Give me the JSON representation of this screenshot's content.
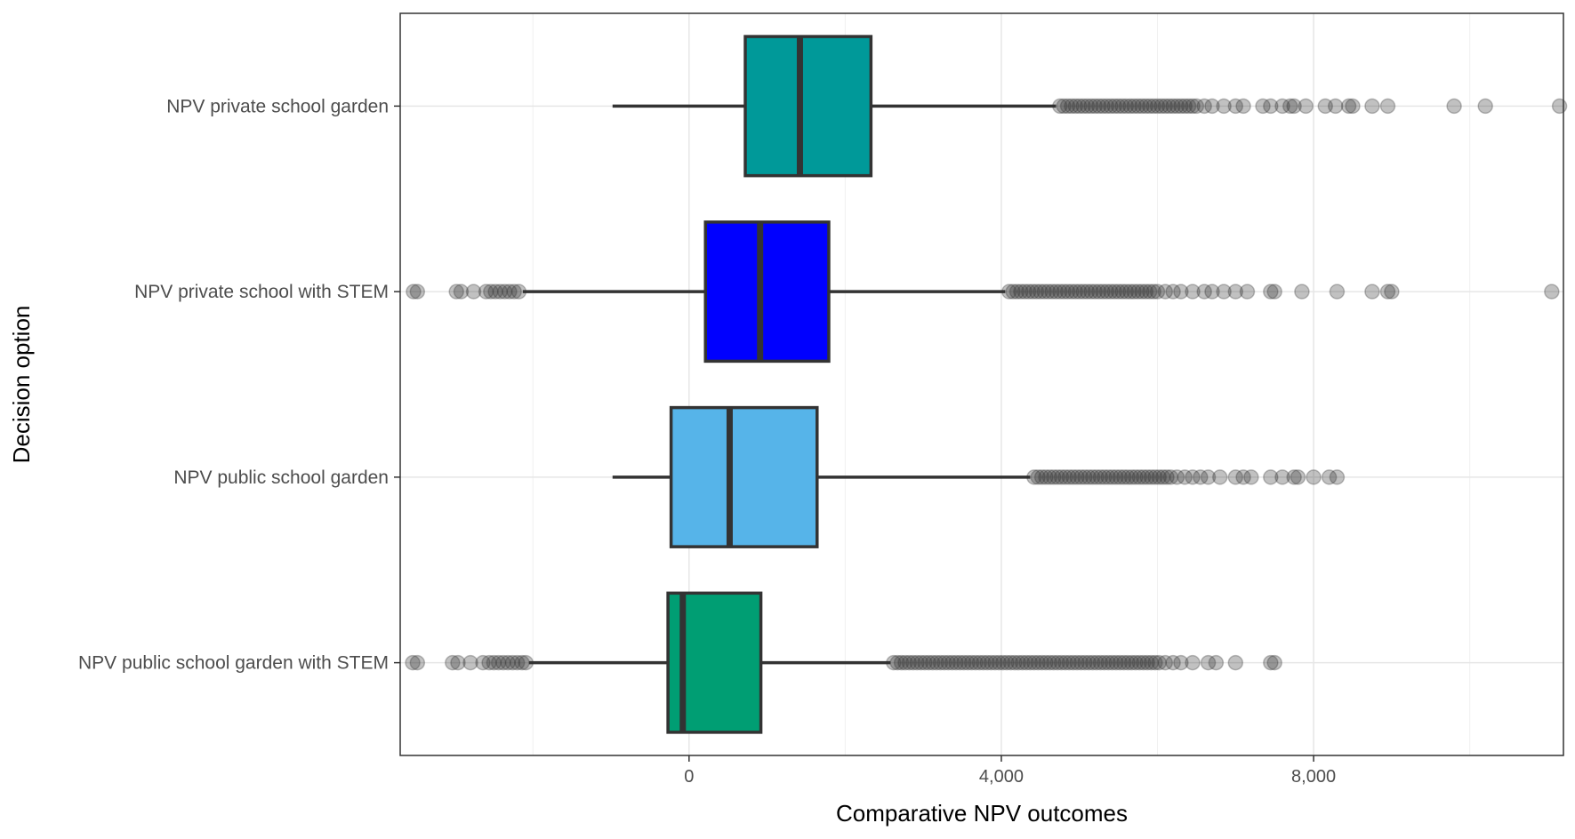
{
  "chart_data": {
    "type": "boxplot",
    "orientation": "horizontal",
    "xlabel": "Comparative NPV outcomes",
    "ylabel": "Decision option",
    "xlim": [
      -3700,
      11200
    ],
    "x_ticks": [
      0,
      4000,
      8000
    ],
    "x_tick_labels": [
      "0",
      "4,000",
      "8,000"
    ],
    "x_minor_gridlines": [
      -2000,
      2000,
      6000,
      10000
    ],
    "grid": true,
    "legend": "none",
    "series": [
      {
        "name": "NPV private school garden",
        "color": "#009999",
        "whisker_low": -980,
        "q1": 720,
        "median": 1420,
        "q3": 2330,
        "whisker_high": 4700,
        "outliers": [
          4750,
          4800,
          4850,
          4900,
          4950,
          5000,
          5050,
          5100,
          5150,
          5200,
          5250,
          5300,
          5350,
          5400,
          5450,
          5500,
          5550,
          5600,
          5650,
          5700,
          5750,
          5800,
          5850,
          5900,
          5950,
          6000,
          6050,
          6100,
          6150,
          6200,
          6250,
          6300,
          6350,
          6400,
          6450,
          6500,
          6600,
          6700,
          6850,
          7000,
          7100,
          7350,
          7450,
          7600,
          7700,
          7750,
          7900,
          8150,
          8280,
          8450,
          8500,
          8750,
          8950,
          9800,
          10200,
          11150
        ]
      },
      {
        "name": "NPV private school with STEM",
        "color": "#0000ff",
        "whisker_low": -2130,
        "q1": 210,
        "median": 910,
        "q3": 1790,
        "whisker_high": 4050,
        "outliers": [
          -3530,
          -3480,
          -2980,
          -2920,
          -2760,
          -2600,
          -2540,
          -2480,
          -2420,
          -2360,
          -2300,
          -2240,
          -2180,
          4100,
          4150,
          4200,
          4250,
          4300,
          4350,
          4400,
          4450,
          4500,
          4550,
          4600,
          4650,
          4700,
          4750,
          4800,
          4850,
          4900,
          4950,
          5000,
          5050,
          5100,
          5150,
          5200,
          5250,
          5300,
          5350,
          5400,
          5450,
          5500,
          5550,
          5600,
          5650,
          5700,
          5750,
          5800,
          5850,
          5900,
          5950,
          6000,
          6100,
          6200,
          6300,
          6450,
          6600,
          6700,
          6850,
          7000,
          7150,
          7450,
          7500,
          7850,
          8300,
          8750,
          8950,
          9000,
          11050
        ]
      },
      {
        "name": "NPV public school garden",
        "color": "#56b4e9",
        "whisker_low": -980,
        "q1": -230,
        "median": 520,
        "q3": 1640,
        "whisker_high": 4370,
        "outliers": [
          4420,
          4470,
          4520,
          4570,
          4620,
          4670,
          4720,
          4770,
          4820,
          4870,
          4920,
          4970,
          5020,
          5070,
          5120,
          5170,
          5220,
          5270,
          5320,
          5370,
          5420,
          5470,
          5520,
          5570,
          5620,
          5670,
          5720,
          5770,
          5820,
          5870,
          5920,
          5970,
          6020,
          6070,
          6120,
          6170,
          6250,
          6350,
          6450,
          6550,
          6650,
          6800,
          7000,
          7100,
          7200,
          7450,
          7600,
          7750,
          7800,
          8000,
          8200,
          8300
        ]
      },
      {
        "name": "NPV public school garden with STEM",
        "color": "#009e73",
        "whisker_low": -2050,
        "q1": -270,
        "median": -80,
        "q3": 920,
        "whisker_high": 2580,
        "outliers": [
          -3540,
          -3480,
          -3030,
          -2960,
          -2800,
          -2640,
          -2560,
          -2500,
          -2440,
          -2380,
          -2320,
          -2260,
          -2200,
          -2140,
          -2090,
          2620,
          2670,
          2720,
          2770,
          2820,
          2870,
          2920,
          2970,
          3020,
          3070,
          3120,
          3170,
          3220,
          3270,
          3320,
          3370,
          3420,
          3470,
          3520,
          3570,
          3620,
          3670,
          3720,
          3770,
          3820,
          3870,
          3920,
          3970,
          4020,
          4070,
          4120,
          4170,
          4220,
          4270,
          4320,
          4370,
          4420,
          4470,
          4520,
          4570,
          4620,
          4670,
          4720,
          4770,
          4820,
          4870,
          4920,
          4970,
          5020,
          5070,
          5120,
          5170,
          5220,
          5270,
          5320,
          5370,
          5420,
          5470,
          5520,
          5570,
          5620,
          5670,
          5720,
          5770,
          5820,
          5870,
          5920,
          5970,
          6020,
          6100,
          6200,
          6300,
          6450,
          6650,
          6750,
          7000,
          7450,
          7500
        ]
      }
    ]
  }
}
